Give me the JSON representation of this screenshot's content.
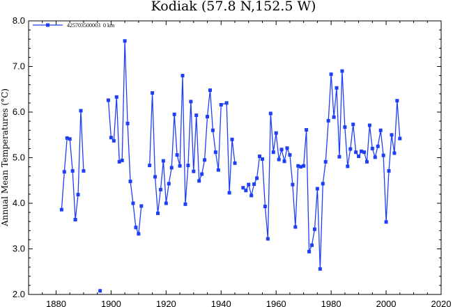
{
  "chart_data": {
    "type": "line",
    "title": "Kodiak (57.8 N,152.5 W)",
    "xlabel": "",
    "ylabel": "Annual Mean Temperatures (°C)",
    "xlim": [
      1870,
      2020
    ],
    "ylim": [
      2.0,
      8.0
    ],
    "x_ticks": [
      1880,
      1900,
      1920,
      1940,
      1960,
      1980,
      2000,
      2020
    ],
    "y_ticks": [
      2.0,
      3.0,
      4.0,
      5.0,
      6.0,
      7.0,
      8.0
    ],
    "legend_position": "top-left",
    "series": [
      {
        "name": "425703500003  0 km",
        "color": "#1f3ff5",
        "marker": "square",
        "segments": [
          [
            [
              1882,
              3.86
            ],
            [
              1883,
              4.69
            ],
            [
              1884,
              5.43
            ],
            [
              1885,
              5.41
            ],
            [
              1886,
              4.71
            ],
            [
              1887,
              3.64
            ],
            [
              1888,
              4.19
            ],
            [
              1889,
              6.03
            ],
            [
              1890,
              4.71
            ]
          ],
          [
            [
              1896,
              2.08
            ]
          ],
          [
            [
              1899,
              6.26
            ],
            [
              1900,
              5.44
            ],
            [
              1901,
              5.37
            ],
            [
              1902,
              6.33
            ],
            [
              1903,
              4.91
            ],
            [
              1904,
              4.94
            ],
            [
              1905,
              7.56
            ],
            [
              1906,
              5.75
            ],
            [
              1907,
              4.48
            ],
            [
              1908,
              4.0
            ],
            [
              1909,
              3.47
            ],
            [
              1910,
              3.33
            ],
            [
              1911,
              3.94
            ]
          ],
          [
            [
              1914,
              4.83
            ],
            [
              1915,
              6.42
            ],
            [
              1916,
              4.58
            ],
            [
              1917,
              3.78
            ],
            [
              1918,
              4.3
            ],
            [
              1919,
              4.93
            ],
            [
              1920,
              4.0
            ],
            [
              1921,
              4.43
            ],
            [
              1922,
              4.78
            ],
            [
              1923,
              5.95
            ],
            [
              1924,
              5.06
            ],
            [
              1925,
              4.82
            ],
            [
              1926,
              6.8
            ],
            [
              1927,
              3.98
            ],
            [
              1928,
              4.83
            ],
            [
              1929,
              6.23
            ],
            [
              1930,
              4.7
            ],
            [
              1931,
              5.93
            ],
            [
              1932,
              4.49
            ],
            [
              1933,
              4.64
            ],
            [
              1934,
              4.95
            ],
            [
              1935,
              5.9
            ],
            [
              1936,
              6.48
            ],
            [
              1937,
              5.6
            ],
            [
              1938,
              5.12
            ],
            [
              1939,
              4.73
            ],
            [
              1940,
              6.16
            ],
            [
              1942,
              6.2
            ],
            [
              1943,
              4.23
            ],
            [
              1944,
              5.4
            ],
            [
              1945,
              4.88
            ]
          ],
          [
            [
              1948,
              4.34
            ],
            [
              1949,
              4.28
            ],
            [
              1950,
              4.41
            ],
            [
              1951,
              4.17
            ],
            [
              1952,
              4.42
            ],
            [
              1953,
              4.55
            ],
            [
              1954,
              5.03
            ],
            [
              1955,
              4.97
            ],
            [
              1956,
              3.93
            ],
            [
              1957,
              3.22
            ],
            [
              1958,
              5.97
            ],
            [
              1959,
              5.12
            ],
            [
              1960,
              5.54
            ],
            [
              1961,
              4.96
            ],
            [
              1962,
              5.18
            ],
            [
              1963,
              4.92
            ],
            [
              1964,
              5.21
            ],
            [
              1965,
              5.06
            ],
            [
              1966,
              4.41
            ],
            [
              1967,
              3.48
            ],
            [
              1968,
              4.82
            ],
            [
              1969,
              4.8
            ],
            [
              1970,
              4.82
            ],
            [
              1971,
              5.61
            ],
            [
              1972,
              2.94
            ],
            [
              1973,
              3.08
            ],
            [
              1974,
              3.43
            ],
            [
              1975,
              4.32
            ],
            [
              1976,
              2.56
            ],
            [
              1977,
              4.43
            ],
            [
              1978,
              4.91
            ],
            [
              1979,
              5.81
            ],
            [
              1980,
              6.83
            ],
            [
              1981,
              5.89
            ],
            [
              1982,
              6.53
            ],
            [
              1983,
              5.02
            ],
            [
              1984,
              6.9
            ],
            [
              1985,
              5.67
            ],
            [
              1986,
              4.81
            ],
            [
              1987,
              5.19
            ],
            [
              1988,
              5.73
            ],
            [
              1989,
              5.12
            ],
            [
              1990,
              5.03
            ],
            [
              1991,
              5.14
            ],
            [
              1992,
              5.12
            ],
            [
              1993,
              4.91
            ],
            [
              1994,
              5.71
            ],
            [
              1995,
              5.2
            ],
            [
              1996,
              5.01
            ],
            [
              1997,
              5.25
            ],
            [
              1998,
              5.6
            ],
            [
              1999,
              5.05
            ],
            [
              2000,
              3.59
            ],
            [
              2001,
              4.71
            ],
            [
              2002,
              5.5
            ],
            [
              2003,
              5.1
            ],
            [
              2004,
              6.25
            ],
            [
              2005,
              5.42
            ]
          ]
        ]
      }
    ]
  }
}
